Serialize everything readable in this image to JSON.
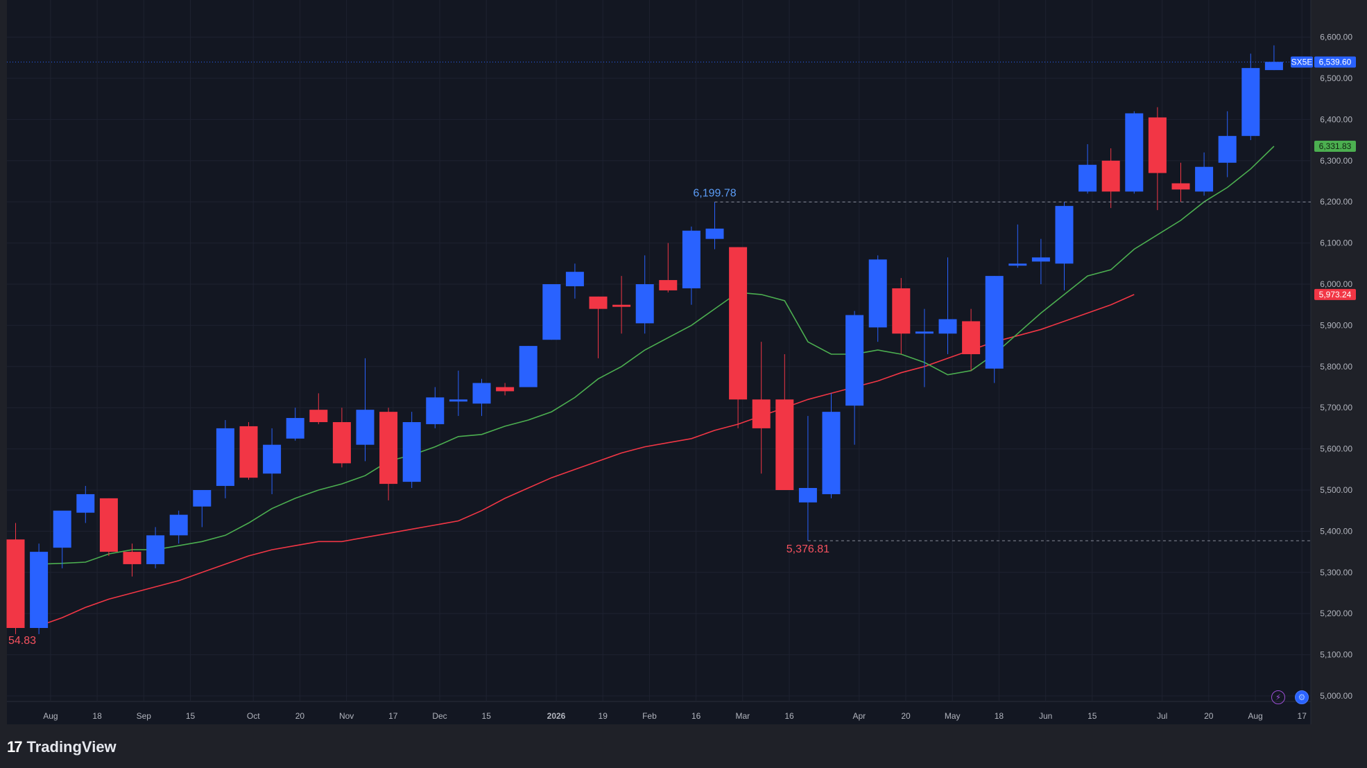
{
  "brand": {
    "name": "TradingView"
  },
  "symbol": "SX5E",
  "last_price_label": "6,539.60",
  "ma_fast_label": "6,331.83",
  "ma_slow_label": "5,973.24",
  "icons": {
    "flash": "flash-icon",
    "settings": "settings-icon"
  },
  "colors": {
    "background": "#131722",
    "up": "#2962ff",
    "down": "#f23645",
    "ma_fast": "#4caf50",
    "ma_slow": "#f23645",
    "axis_text": "#b2b5be",
    "grid": "#1e2230"
  },
  "chart_data": {
    "type": "candlestick",
    "title": "",
    "xlabel": "",
    "ylabel": "",
    "ylim": [
      4950,
      6700
    ],
    "y_ticks": [
      "5,000.00",
      "5,100.00",
      "5,200.00",
      "5,300.00",
      "5,400.00",
      "5,500.00",
      "5,600.00",
      "5,700.00",
      "5,800.00",
      "5,900.00",
      "6,000.00",
      "6,100.00",
      "6,200.00",
      "6,300.00",
      "6,400.00",
      "6,500.00",
      "6,600.00"
    ],
    "x_ticks": [
      {
        "label": "Aug",
        "at": 1.5
      },
      {
        "label": "18",
        "at": 3.5
      },
      {
        "label": "Sep",
        "at": 5.5
      },
      {
        "label": "15",
        "at": 7.5
      },
      {
        "label": "Oct",
        "at": 10.2
      },
      {
        "label": "20",
        "at": 12.2
      },
      {
        "label": "Nov",
        "at": 14.2
      },
      {
        "label": "17",
        "at": 16.2
      },
      {
        "label": "Dec",
        "at": 18.2
      },
      {
        "label": "15",
        "at": 20.2
      },
      {
        "label": "2026",
        "at": 23.2
      },
      {
        "label": "19",
        "at": 25.2
      },
      {
        "label": "Feb",
        "at": 27.2
      },
      {
        "label": "16",
        "at": 29.2
      },
      {
        "label": "Mar",
        "at": 31.2
      },
      {
        "label": "16",
        "at": 33.2
      },
      {
        "label": "Apr",
        "at": 36.2
      },
      {
        "label": "20",
        "at": 38.2
      },
      {
        "label": "May",
        "at": 40.2
      },
      {
        "label": "18",
        "at": 42.2
      },
      {
        "label": "Jun",
        "at": 44.2
      },
      {
        "label": "15",
        "at": 46.2
      },
      {
        "label": "Jul",
        "at": 49.2
      },
      {
        "label": "20",
        "at": 51.2
      },
      {
        "label": "Aug",
        "at": 53.2
      },
      {
        "label": "17",
        "at": 55.2
      }
    ],
    "candles": [
      {
        "o": 5380,
        "h": 5420,
        "l": 5150,
        "c": 5165
      },
      {
        "o": 5165,
        "h": 5370,
        "l": 5150,
        "c": 5350
      },
      {
        "o": 5360,
        "h": 5440,
        "l": 5310,
        "c": 5450
      },
      {
        "o": 5445,
        "h": 5510,
        "l": 5420,
        "c": 5490
      },
      {
        "o": 5480,
        "h": 5480,
        "l": 5340,
        "c": 5350
      },
      {
        "o": 5350,
        "h": 5370,
        "l": 5290,
        "c": 5320
      },
      {
        "o": 5320,
        "h": 5410,
        "l": 5310,
        "c": 5390
      },
      {
        "o": 5390,
        "h": 5450,
        "l": 5370,
        "c": 5440
      },
      {
        "o": 5460,
        "h": 5500,
        "l": 5410,
        "c": 5500
      },
      {
        "o": 5510,
        "h": 5670,
        "l": 5480,
        "c": 5650
      },
      {
        "o": 5655,
        "h": 5665,
        "l": 5525,
        "c": 5530
      },
      {
        "o": 5540,
        "h": 5650,
        "l": 5490,
        "c": 5610
      },
      {
        "o": 5625,
        "h": 5700,
        "l": 5620,
        "c": 5675
      },
      {
        "o": 5695,
        "h": 5735,
        "l": 5660,
        "c": 5665
      },
      {
        "o": 5665,
        "h": 5700,
        "l": 5555,
        "c": 5565
      },
      {
        "o": 5610,
        "h": 5820,
        "l": 5570,
        "c": 5695
      },
      {
        "o": 5690,
        "h": 5700,
        "l": 5475,
        "c": 5515
      },
      {
        "o": 5520,
        "h": 5690,
        "l": 5505,
        "c": 5665
      },
      {
        "o": 5660,
        "h": 5750,
        "l": 5650,
        "c": 5725
      },
      {
        "o": 5715,
        "h": 5790,
        "l": 5680,
        "c": 5720
      },
      {
        "o": 5710,
        "h": 5770,
        "l": 5680,
        "c": 5760
      },
      {
        "o": 5750,
        "h": 5760,
        "l": 5730,
        "c": 5740
      },
      {
        "o": 5750,
        "h": 5850,
        "l": 5750,
        "c": 5850
      },
      {
        "o": 5865,
        "h": 6000,
        "l": 5865,
        "c": 6000
      },
      {
        "o": 5995,
        "h": 6050,
        "l": 5965,
        "c": 6030
      },
      {
        "o": 5970,
        "h": 5970,
        "l": 5820,
        "c": 5940
      },
      {
        "o": 5950,
        "h": 6020,
        "l": 5880,
        "c": 5945
      },
      {
        "o": 5905,
        "h": 6070,
        "l": 5880,
        "c": 6000
      },
      {
        "o": 6010,
        "h": 6100,
        "l": 5980,
        "c": 5985
      },
      {
        "o": 5990,
        "h": 6140,
        "l": 5950,
        "c": 6130
      },
      {
        "o": 6110,
        "h": 6200,
        "l": 6085,
        "c": 6135
      },
      {
        "o": 6090,
        "h": 6090,
        "l": 5650,
        "c": 5720
      },
      {
        "o": 5720,
        "h": 5860,
        "l": 5540,
        "c": 5650
      },
      {
        "o": 5720,
        "h": 5830,
        "l": 5500,
        "c": 5500
      },
      {
        "o": 5470,
        "h": 5680,
        "l": 5377,
        "c": 5505
      },
      {
        "o": 5490,
        "h": 5735,
        "l": 5480,
        "c": 5690
      },
      {
        "o": 5705,
        "h": 5935,
        "l": 5610,
        "c": 5925
      },
      {
        "o": 5895,
        "h": 6070,
        "l": 5860,
        "c": 6060
      },
      {
        "o": 5990,
        "h": 6015,
        "l": 5830,
        "c": 5880
      },
      {
        "o": 5880,
        "h": 5940,
        "l": 5750,
        "c": 5885
      },
      {
        "o": 5880,
        "h": 6065,
        "l": 5830,
        "c": 5915
      },
      {
        "o": 5910,
        "h": 5940,
        "l": 5790,
        "c": 5830
      },
      {
        "o": 5795,
        "h": 6020,
        "l": 5760,
        "c": 6020
      },
      {
        "o": 6045,
        "h": 6145,
        "l": 6040,
        "c": 6050
      },
      {
        "o": 6055,
        "h": 6110,
        "l": 6000,
        "c": 6065
      },
      {
        "o": 6050,
        "h": 6200,
        "l": 5985,
        "c": 6190
      },
      {
        "o": 6225,
        "h": 6340,
        "l": 6220,
        "c": 6290
      },
      {
        "o": 6300,
        "h": 6330,
        "l": 6185,
        "c": 6225
      },
      {
        "o": 6225,
        "h": 6420,
        "l": 6220,
        "c": 6415
      },
      {
        "o": 6405,
        "h": 6430,
        "l": 6180,
        "c": 6270
      },
      {
        "o": 6245,
        "h": 6295,
        "l": 6200,
        "c": 6230
      },
      {
        "o": 6225,
        "h": 6320,
        "l": 6215,
        "c": 6285
      },
      {
        "o": 6295,
        "h": 6420,
        "l": 6260,
        "c": 6360
      },
      {
        "o": 6360,
        "h": 6560,
        "l": 6350,
        "c": 6525
      },
      {
        "o": 6520,
        "h": 6580,
        "l": 6520,
        "c": 6540
      }
    ],
    "series": [
      {
        "values": [
          5320,
          5322,
          5325,
          5345,
          5355,
          5355,
          5365,
          5375,
          5390,
          5420,
          5455,
          5480,
          5500,
          5515,
          5535,
          5570,
          5585,
          5605,
          5630,
          5635,
          5655,
          5670,
          5690,
          5725,
          5770,
          5800,
          5840,
          5870,
          5900,
          5940,
          5980,
          5975,
          5960,
          5860,
          5830,
          5830,
          5840,
          5830,
          5810,
          5780,
          5790,
          5830,
          5880,
          5930,
          5975,
          6020,
          6035,
          6085,
          6120,
          6155,
          6200,
          6235,
          6280,
          6335
        ]
      },
      {
        "values": [
          5170,
          5190,
          5215,
          5235,
          5250,
          5265,
          5280,
          5300,
          5320,
          5340,
          5355,
          5365,
          5375,
          5375,
          5385,
          5395,
          5405,
          5415,
          5425,
          5450,
          5480,
          5505,
          5530,
          5550,
          5570,
          5590,
          5605,
          5615,
          5625,
          5645,
          5660,
          5680,
          5700,
          5720,
          5735,
          5750,
          5765,
          5785,
          5800,
          5820,
          5840,
          5860,
          5875,
          5890,
          5910,
          5930,
          5950,
          5975
        ]
      }
    ],
    "ma_fast_start_index": 1,
    "ma_slow_start_index": 1,
    "annotations": {
      "high": {
        "label": "6,199.78",
        "value": 6199.78,
        "index": 30
      },
      "low": {
        "label": "5,376.81",
        "value": 5376.81,
        "index": 34
      },
      "left_low": {
        "label": "54.83"
      }
    },
    "last_price": 6539.6
  }
}
